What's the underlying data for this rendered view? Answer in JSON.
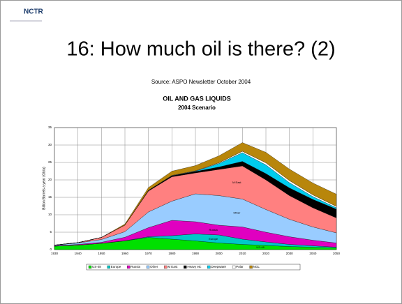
{
  "logo": "NCTR",
  "slide_title": "16: How much oil is there? (2)",
  "source": "Source: ASPO Newsletter October 2004",
  "chart_data": {
    "type": "stacked_area",
    "title": "OIL AND GAS LIQUIDS",
    "subtitle": "2004 Scenario",
    "y_label": "Billion Barrels a year (Gb/a)",
    "x": [
      1930,
      1940,
      1950,
      1960,
      1970,
      1980,
      1990,
      2000,
      2010,
      2020,
      2030,
      2040,
      2050
    ],
    "xlim": [
      1930,
      2050
    ],
    "xticks": [
      1930,
      1940,
      1950,
      1960,
      1970,
      1980,
      1990,
      2000,
      2010,
      2020,
      2030,
      2040,
      2050
    ],
    "ylim": [
      0,
      35
    ],
    "yticks": [
      0,
      5,
      10,
      15,
      20,
      25,
      30,
      35
    ],
    "grid": true,
    "legend": "bottom",
    "series": [
      {
        "name": "US-48",
        "color": "#00e000",
        "values": [
          1,
          1.3,
          1.8,
          2.5,
          3.5,
          3,
          2.5,
          1.9,
          1.5,
          1.2,
          0.9,
          0.7,
          0.5
        ]
      },
      {
        "name": "Europe",
        "color": "#00c8c8",
        "values": [
          0,
          0,
          0,
          0.05,
          0.2,
          1,
          2,
          2.3,
          1.5,
          1,
          0.6,
          0.4,
          0.2
        ]
      },
      {
        "name": "Russia",
        "color": "#e000c0",
        "values": [
          0.1,
          0.2,
          0.3,
          1,
          2.6,
          4.4,
          3.5,
          2.8,
          3.5,
          2.8,
          2.2,
          1.6,
          1.2
        ]
      },
      {
        "name": "Other",
        "color": "#99ccff",
        "values": [
          0.2,
          0.4,
          0.8,
          1.6,
          4.5,
          5.5,
          8,
          8.5,
          8,
          6.5,
          5,
          3.8,
          2.9
        ]
      },
      {
        "name": "M East",
        "color": "#ff8080",
        "values": [
          0,
          0.1,
          0.6,
          1.9,
          6,
          7,
          6,
          7.5,
          9.5,
          8.5,
          6.8,
          5.5,
          4.3
        ]
      },
      {
        "name": "Heavy etc",
        "color": "#000000",
        "values": [
          0,
          0,
          0,
          0,
          0.2,
          0.3,
          0.4,
          0.7,
          1.3,
          1.8,
          2.2,
          2.4,
          2.5
        ]
      },
      {
        "name": "Deepwater",
        "color": "#00ccee",
        "values": [
          0,
          0,
          0,
          0,
          0,
          0,
          0.1,
          1,
          2.5,
          2.5,
          1.5,
          0.8,
          0.4
        ]
      },
      {
        "name": "Polar",
        "color": "#ffffff",
        "values": [
          0,
          0,
          0,
          0,
          0,
          0.1,
          0.1,
          0.2,
          0.4,
          0.6,
          0.6,
          0.5,
          0.4
        ]
      },
      {
        "name": "NGL",
        "color": "#b8860b",
        "values": [
          0,
          0,
          0,
          0.3,
          0.8,
          1.2,
          1.5,
          2,
          2.5,
          3,
          3.3,
          3.4,
          3.5
        ]
      }
    ]
  }
}
